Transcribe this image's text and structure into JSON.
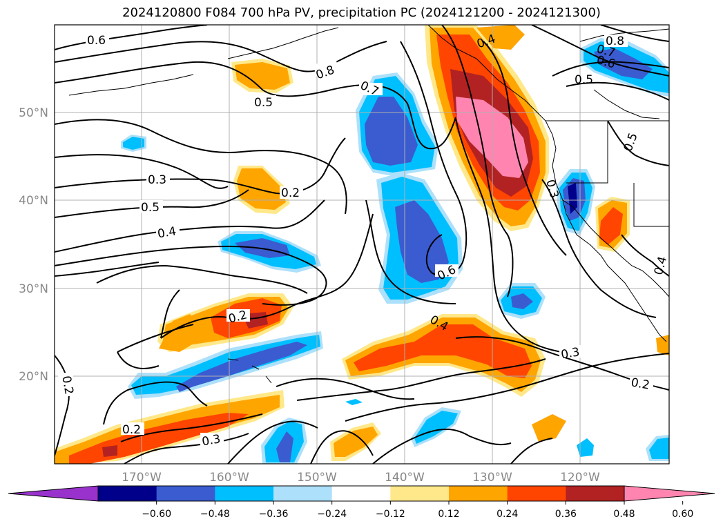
{
  "title": "2024120800 F084 700 hPa PV, precipitation PC (2024121200 - 2024121300)",
  "lat_labels": [
    "50°N",
    "40°N",
    "30°N",
    "20°N"
  ],
  "lon_labels": [
    "170°W",
    "160°W",
    "150°W",
    "140°W",
    "130°W",
    "120°W"
  ],
  "contour_labels": [
    "0.6",
    "0.8",
    "0.5",
    "0.7",
    "0.4",
    "0.7",
    "0.8",
    "0.6",
    "0.5",
    "0.3",
    "0.2",
    "0.5",
    "0.4",
    "0.3",
    "0.6",
    "0.2",
    "0.4",
    "0.3",
    "0.2",
    "0.2",
    "0.2",
    "0.3",
    "0.5",
    "0.4"
  ],
  "colorbar": {
    "colors": [
      "#9932CC",
      "#00008B",
      "#3A5CD0",
      "#00BFFF",
      "#ADE0FA",
      "#FFFFFF",
      "#FFE88A",
      "#FFA500",
      "#FF4500",
      "#B22222",
      "#FF85B0"
    ],
    "tick_labels": [
      "−0.60",
      "−0.48",
      "−0.36",
      "−0.24",
      "−0.12",
      "0.12",
      "0.24",
      "0.36",
      "0.48",
      "0.60"
    ]
  }
}
